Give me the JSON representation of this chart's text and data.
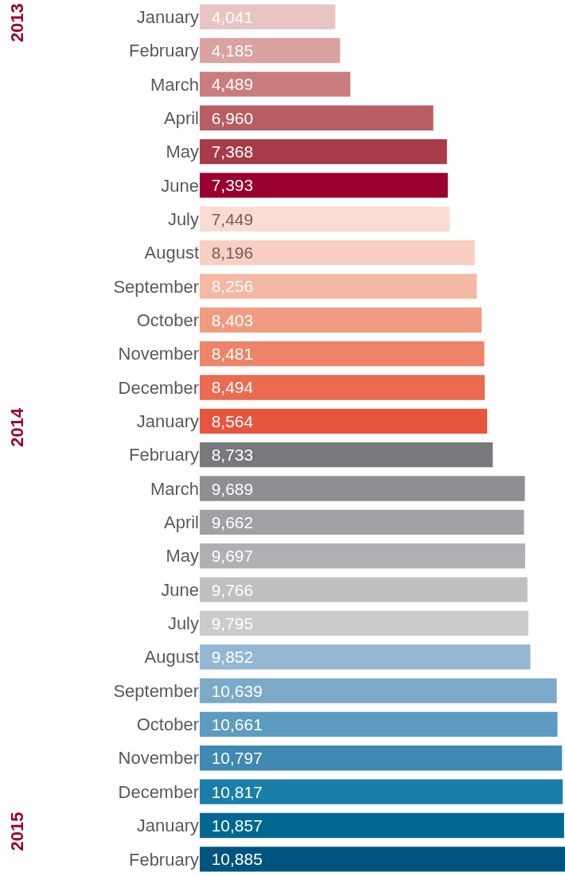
{
  "chart_data": {
    "type": "bar",
    "orientation": "horizontal",
    "categories": [
      "January",
      "February",
      "March",
      "April",
      "May",
      "June",
      "July",
      "August",
      "September",
      "October",
      "November",
      "December",
      "January",
      "February",
      "March",
      "April",
      "May",
      "June",
      "July",
      "August",
      "September",
      "October",
      "November",
      "December",
      "January",
      "February"
    ],
    "values": [
      4041,
      4185,
      4489,
      6960,
      7368,
      7393,
      7449,
      8196,
      8256,
      8403,
      8481,
      8494,
      8564,
      8733,
      9689,
      9662,
      9697,
      9766,
      9795,
      9852,
      10639,
      10661,
      10797,
      10817,
      10857,
      10885
    ],
    "colors": [
      "#e8c4c4",
      "#dba2a2",
      "#c97d7d",
      "#b85e63",
      "#a83b48",
      "#990030",
      "#fadbd2",
      "#f8cfc0",
      "#f5b8a3",
      "#f09c80",
      "#ed8468",
      "#ea6b50",
      "#e8553d",
      "#78787d",
      "#8e8e93",
      "#a0a0a5",
      "#b0b0b4",
      "#c0c0c3",
      "#cbcbcd",
      "#94b8d4",
      "#7aaac8",
      "#5d9bc0",
      "#3f89b3",
      "#1a7fa8",
      "#006890",
      "#005580"
    ],
    "annotations": [
      "2013",
      "2014",
      "2015"
    ],
    "value_labels": [
      "4,041",
      "4,185",
      "4,489",
      "6,960",
      "7,368",
      "7,393",
      "7,449",
      "8,196",
      "8,256",
      "8,403",
      "8,481",
      "8,494",
      "8,564",
      "8,733",
      "9,689",
      "9,662",
      "9,697",
      "9,766",
      "9,795",
      "9,852",
      "10,639",
      "10,661",
      "10,797",
      "10,817",
      "10,857",
      "10,885"
    ],
    "grid": false,
    "legend": false
  }
}
